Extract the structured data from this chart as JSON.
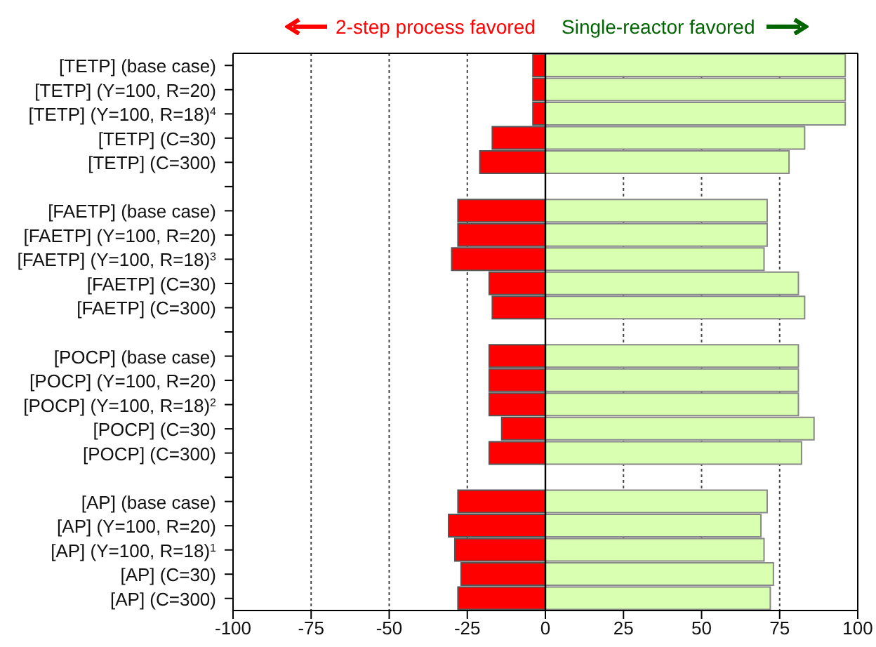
{
  "chart_data": {
    "type": "bar",
    "orientation": "horizontal",
    "stacked": true,
    "categories": [
      "[TETP] (base case)",
      "[TETP] (Y=100, R=20)",
      "[TETP] (Y=100, R=18)$^{4}$",
      "[TETP] (C=30)",
      "[TETP] (C=300)",
      null,
      "[FAETP] (base case)",
      "[FAETP] (Y=100, R=20)",
      "[FAETP] (Y=100, R=18)$^{3}$",
      "[FAETP] (C=30)",
      "[FAETP] (C=300)",
      null,
      "[POCP] (base case)",
      "[POCP] (Y=100, R=20)",
      "[POCP] (Y=100, R=18)$^{2}$",
      "[POCP] (C=30)",
      "[POCP] (C=300)",
      null,
      "[AP] (base case)",
      "[AP] (Y=100, R=20)",
      "[AP] (Y=100, R=18)$^{1}$",
      "[AP] (C=30)",
      "[AP] (C=300)"
    ],
    "series": [
      {
        "color": "#ff0000",
        "values": [
          -4,
          -4,
          -4,
          -17,
          -21,
          null,
          -28,
          -28,
          -30,
          -18,
          -17,
          null,
          -18,
          -18,
          -18,
          -14,
          -18,
          null,
          -28,
          -31,
          -29,
          -27,
          -28
        ]
      },
      {
        "color": "#d9ffb0",
        "values": [
          96,
          96,
          96,
          83,
          78,
          null,
          71,
          71,
          70,
          81,
          83,
          null,
          81,
          81,
          81,
          86,
          82,
          null,
          71,
          69,
          70,
          73,
          72
        ]
      }
    ],
    "xlim": [
      -100,
      100
    ],
    "xticks": [
      -100,
      -75,
      -50,
      -25,
      0,
      25,
      50,
      75,
      100
    ],
    "grid": "x",
    "ref_lines": [
      {
        "axis": "x",
        "value": 0
      }
    ],
    "annotations": [
      "2-step process favored",
      "Single-reactor favored"
    ]
  }
}
